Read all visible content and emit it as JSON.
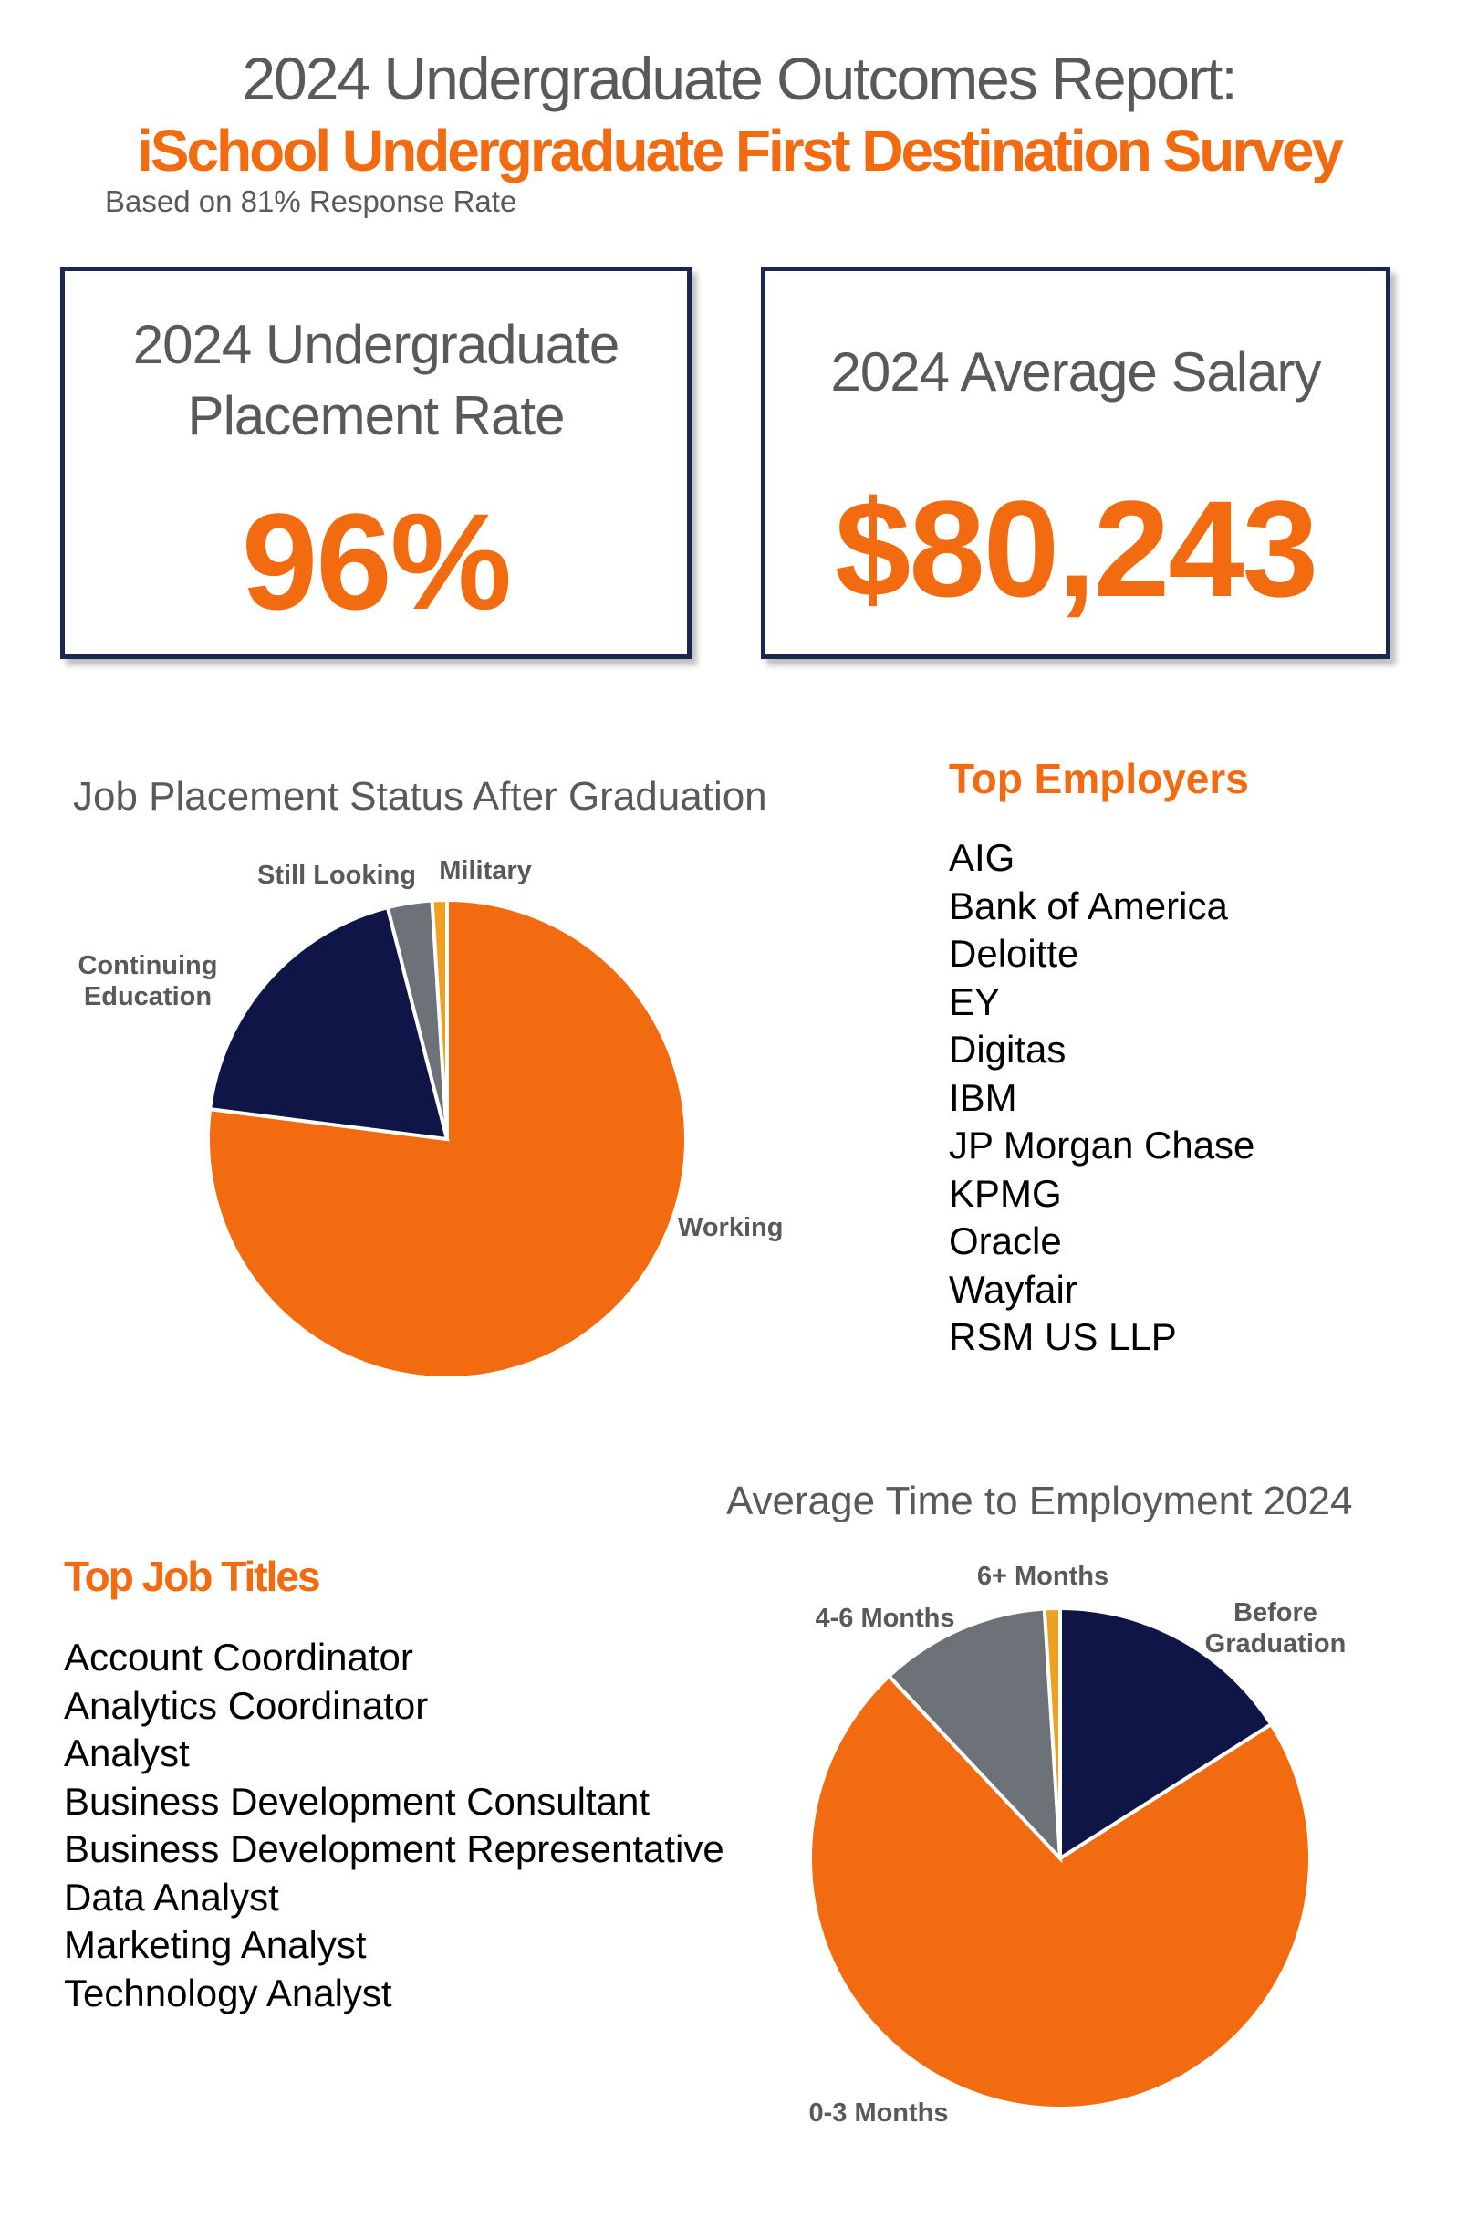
{
  "header": {
    "title_line1": "2024 Undergraduate Outcomes Report:",
    "title_line2": "iSchool Undergraduate First Destination Survey",
    "subtitle": "Based on 81% Response Rate"
  },
  "stats": {
    "placement_label_line1": "2024 Undergraduate",
    "placement_label_line2": "Placement Rate",
    "placement_value": "96%",
    "salary_label": "2024 Average Salary",
    "salary_value": "$80,243"
  },
  "colors": {
    "orange": "#f26b10",
    "navy": "#0f1647",
    "gray": "#6d7278",
    "box_border": "#1b2750"
  },
  "top_employers": {
    "heading": "Top Employers",
    "items": [
      "AIG",
      "Bank of America",
      "Deloitte",
      "EY",
      "Digitas",
      "IBM",
      "JP Morgan Chase",
      "KPMG",
      "Oracle",
      "Wayfair",
      "RSM US LLP"
    ]
  },
  "top_job_titles": {
    "heading": "Top Job Titles",
    "items": [
      "Account Coordinator",
      "Analytics Coordinator",
      "Analyst",
      "Business Development Consultant",
      "Business Development Representative",
      "Data Analyst",
      "Marketing Analyst",
      "Technology Analyst"
    ]
  },
  "chart_data": [
    {
      "type": "pie",
      "title": "Job Placement Status After Graduation",
      "slices": [
        {
          "label": "Working",
          "value": 77,
          "color": "#f26b10"
        },
        {
          "label": "Continuing Education",
          "value": 19,
          "color": "#0f1647"
        },
        {
          "label": "Still Looking",
          "value": 3,
          "color": "#6d7278"
        },
        {
          "label": "Military",
          "value": 1,
          "color": "#f0a020"
        }
      ]
    },
    {
      "type": "pie",
      "title": "Average Time to Employment 2024",
      "slices": [
        {
          "label": "Before Graduation",
          "value": 16,
          "color": "#0f1647"
        },
        {
          "label": "0-3 Months",
          "value": 72,
          "color": "#f26b10"
        },
        {
          "label": "4-6 Months",
          "value": 11,
          "color": "#6d7278"
        },
        {
          "label": "6+ Months",
          "value": 1,
          "color": "#f0a020"
        }
      ]
    }
  ]
}
